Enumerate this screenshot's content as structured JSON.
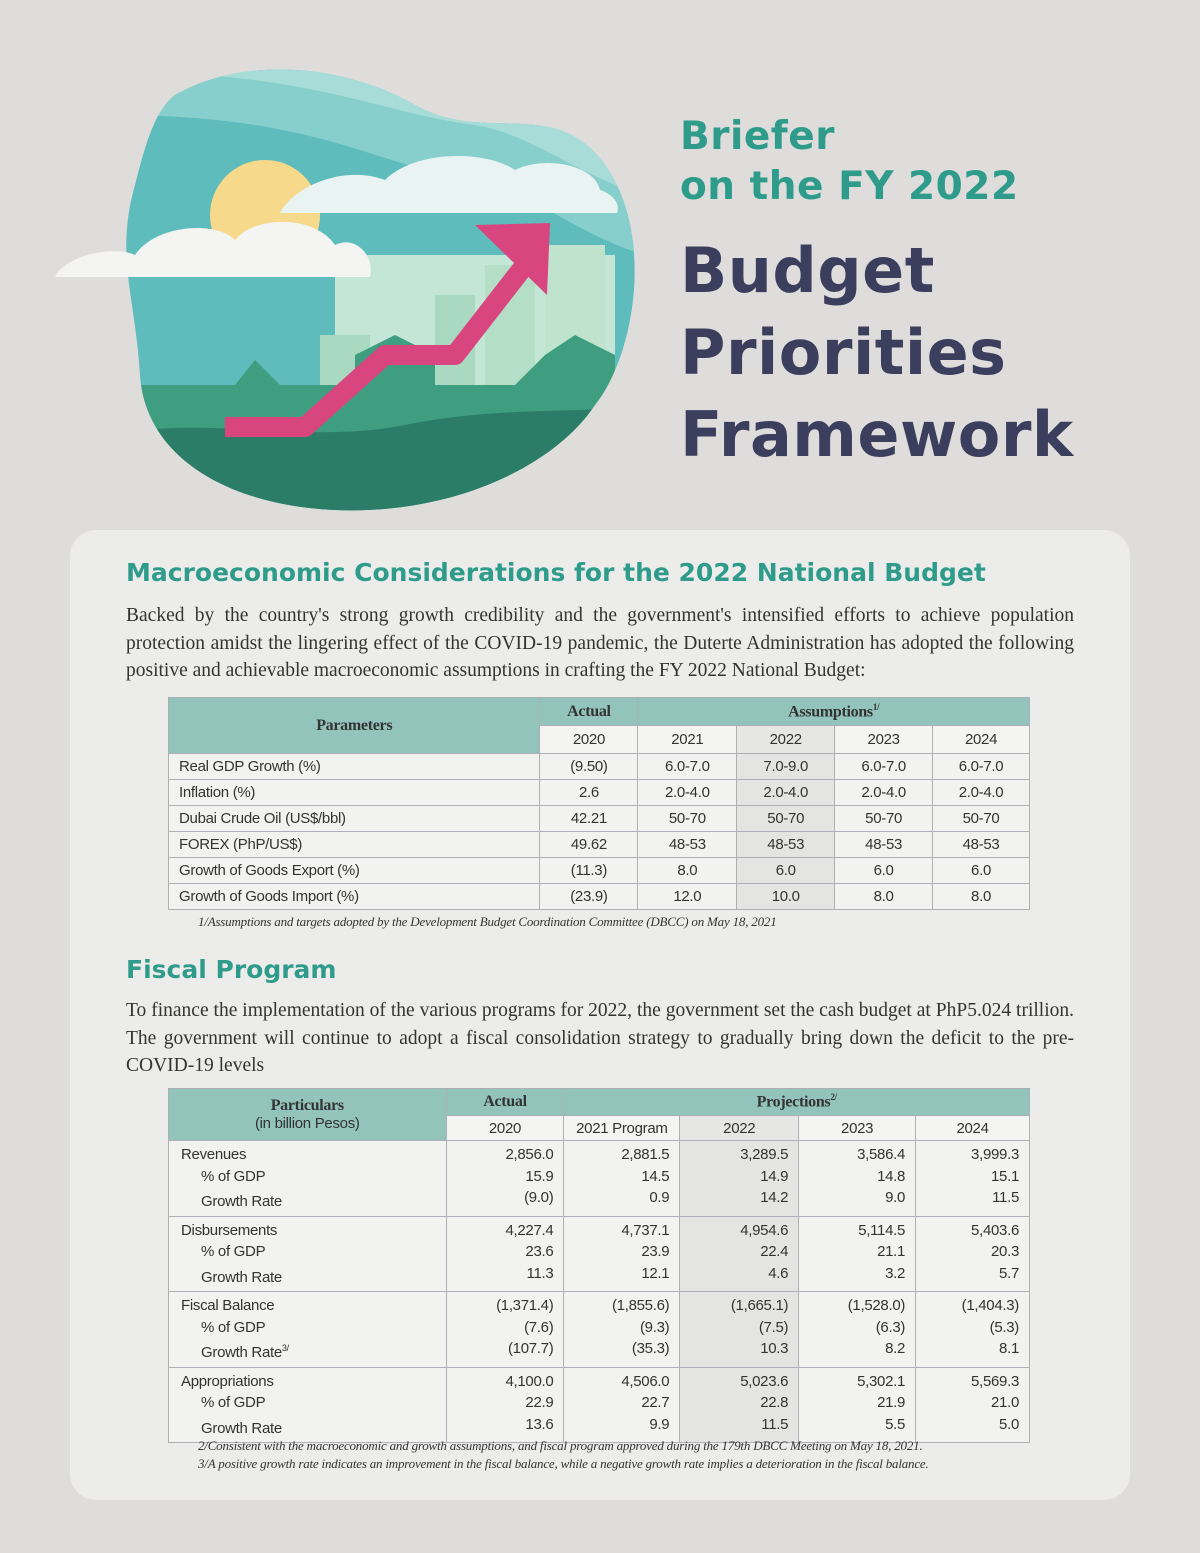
{
  "header": {
    "line1": "Briefer",
    "line2": "on the FY 2022",
    "line3": "Budget",
    "line4": "Priorities",
    "line5": "Framework"
  },
  "macro": {
    "heading": "Macroeconomic Considerations for the 2022 National Budget",
    "paragraph": "Backed by the country's strong growth credibility and the government's intensified efforts to achieve population protection amidst the lingering effect of the COVID-19 pandemic, the Duterte Administration has adopted the following positive and achievable macroeconomic assumptions in crafting the FY 2022 National Budget:",
    "table": {
      "param_header": "Parameters",
      "actual_header": "Actual",
      "assumptions_header": "Assumptions",
      "assumptions_sup": "1/",
      "years": [
        "2020",
        "2021",
        "2022",
        "2023",
        "2024"
      ],
      "rows": [
        {
          "label": "Real GDP Growth (%)",
          "values": [
            "(9.50)",
            "6.0-7.0",
            "7.0-9.0",
            "6.0-7.0",
            "6.0-7.0"
          ]
        },
        {
          "label": "Inflation (%)",
          "values": [
            "2.6",
            "2.0-4.0",
            "2.0-4.0",
            "2.0-4.0",
            "2.0-4.0"
          ]
        },
        {
          "label": "Dubai Crude Oil (US$/bbl)",
          "values": [
            "42.21",
            "50-70",
            "50-70",
            "50-70",
            "50-70"
          ]
        },
        {
          "label": "FOREX (PhP/US$)",
          "values": [
            "49.62",
            "48-53",
            "48-53",
            "48-53",
            "48-53"
          ]
        },
        {
          "label": "Growth of Goods Export (%)",
          "values": [
            "(11.3)",
            "8.0",
            "6.0",
            "6.0",
            "6.0"
          ]
        },
        {
          "label": "Growth of Goods Import (%)",
          "values": [
            "(23.9)",
            "12.0",
            "10.0",
            "8.0",
            "8.0"
          ]
        }
      ]
    },
    "footnote": "1/Assumptions and targets adopted by the Development Budget Coordination Committee (DBCC) on May 18, 2021"
  },
  "fiscal": {
    "heading": "Fiscal Program",
    "paragraph": "To finance the implementation of the various programs for 2022, the government set the cash budget at PhP5.024 trillion. The government will continue to adopt a fiscal consolidation strategy to gradually bring down the deficit to the pre-COVID-19 levels",
    "table": {
      "particulars_header": "Particulars",
      "particulars_sub": "(in billion Pesos)",
      "actual_header": "Actual",
      "projections_header": "Projections",
      "projections_sup": "2/",
      "years": [
        "2020",
        "2021 Program",
        "2022",
        "2023",
        "2024"
      ],
      "groups": [
        {
          "labels": [
            "Revenues",
            "% of GDP",
            "Growth Rate"
          ],
          "label_sup": "",
          "cols": [
            [
              "2,856.0",
              "15.9",
              "(9.0)"
            ],
            [
              "2,881.5",
              "14.5",
              "0.9"
            ],
            [
              "3,289.5",
              "14.9",
              "14.2"
            ],
            [
              "3,586.4",
              "14.8",
              "9.0"
            ],
            [
              "3,999.3",
              "15.1",
              "11.5"
            ]
          ]
        },
        {
          "labels": [
            "Disbursements",
            "% of GDP",
            "Growth Rate"
          ],
          "label_sup": "",
          "cols": [
            [
              "4,227.4",
              "23.6",
              "11.3"
            ],
            [
              "4,737.1",
              "23.9",
              "12.1"
            ],
            [
              "4,954.6",
              "22.4",
              "4.6"
            ],
            [
              "5,114.5",
              "21.1",
              "3.2"
            ],
            [
              "5,403.6",
              "20.3",
              "5.7"
            ]
          ]
        },
        {
          "labels": [
            "Fiscal Balance",
            "% of GDP",
            "Growth Rate"
          ],
          "label_sup": "3/",
          "cols": [
            [
              "(1,371.4)",
              "(7.6)",
              "(107.7)"
            ],
            [
              "(1,855.6)",
              "(9.3)",
              "(35.3)"
            ],
            [
              "(1,665.1)",
              "(7.5)",
              "10.3"
            ],
            [
              "(1,528.0)",
              "(6.3)",
              "8.2"
            ],
            [
              "(1,404.3)",
              "(5.3)",
              "8.1"
            ]
          ]
        },
        {
          "labels": [
            "Appropriations",
            "% of GDP",
            "Growth Rate"
          ],
          "label_sup": "",
          "cols": [
            [
              "4,100.0",
              "22.9",
              "13.6"
            ],
            [
              "4,506.0",
              "22.7",
              "9.9"
            ],
            [
              "5,023.6",
              "22.8",
              "11.5"
            ],
            [
              "5,302.1",
              "21.9",
              "5.5"
            ],
            [
              "5,569.3",
              "21.0",
              "5.0"
            ]
          ]
        }
      ]
    },
    "footnotes": [
      "2/Consistent with the macroeconomic and growth assumptions, and fiscal program approved during the 179th DBCC Meeting on May 18, 2021.",
      "3/A positive growth rate indicates an improvement in the fiscal balance, while a negative growth rate implies a deterioration in the fiscal balance."
    ]
  },
  "colors": {
    "teal": "#2f9c8b",
    "navy": "#3b3e5c",
    "table_header": "#93c4bb",
    "arrow": "#d9457f"
  }
}
